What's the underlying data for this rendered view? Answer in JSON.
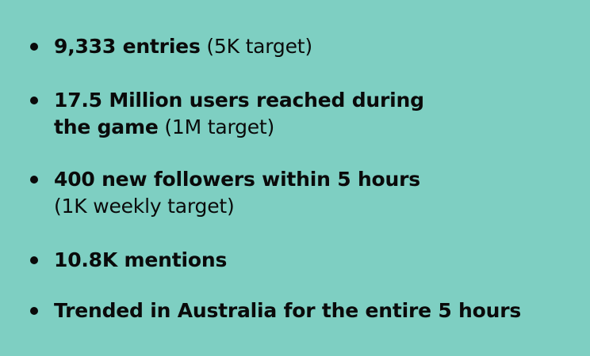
{
  "stats": [
    {
      "lines": [
        {
          "strong": "9,333 entries",
          "note": " (5K target)"
        }
      ]
    },
    {
      "lines": [
        {
          "strong": "17.5 Million users reached during",
          "note": ""
        },
        {
          "strong": "the game",
          "note": " (1M target)"
        }
      ]
    },
    {
      "lines": [
        {
          "strong": "400 new followers within 5 hours",
          "note": ""
        },
        {
          "strong": "",
          "note": "(1K weekly target)"
        }
      ]
    },
    {
      "lines": [
        {
          "strong": "10.8K mentions",
          "note": ""
        }
      ]
    },
    {
      "lines": [
        {
          "strong": "Trended in Australia for the entire 5 hours",
          "note": ""
        }
      ]
    }
  ]
}
